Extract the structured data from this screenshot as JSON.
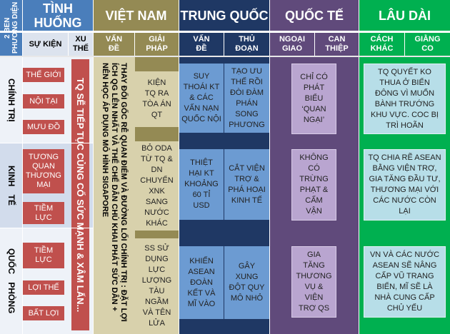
{
  "header": {
    "aspect": "PHƯƠNG DIỆN 2 BÊN",
    "situation": "TÌNH HUỐNG",
    "vietnam": "VIỆT NAM",
    "china": "TRUNG QUỐC",
    "international": "QUỐC TẾ",
    "long_term": "LÂU DÀI"
  },
  "subheader": {
    "event": "SỰ KIỆN",
    "trend": "XU THẾ",
    "vn_issue": "VẤN ĐỀ",
    "vn_solution": "GIẢI PHÁP",
    "cn_issue": "VẤN ĐỀ",
    "cn_tactic": "THỦ ĐOẠN",
    "diplomacy": "NGOẠI GIAO",
    "intervention": "CAN THIỆP",
    "other_way": "CÁCH KHÁC",
    "standoff": "GIẰNG CO"
  },
  "rows": [
    {
      "label": "CHÍNH TRỊ",
      "events": [
        "THẾ GIỚI",
        "NỘI TẠI",
        "MƯU ĐỒ"
      ],
      "vn_solution": "KIỆN TQ RA TÒA ÁN QT",
      "cn_issue": "SUY THOÁI KT & CÁC VẤN NẠN QUỐC NỘI",
      "cn_tactic": "TẠO ƯU THẾ RỒI ĐÒI ĐÀM PHÁN SONG PHƯƠNG",
      "international": "CHỈ CÓ PHÁT BIỂU ‘QUAN NGẠI’",
      "long_term": "TQ QUYẾT KO THUA Ở BIỂN ĐÔNG VÌ MUỐN BÀNH TRƯỚNG KHU VỰC. COC BỊ TRÌ HOÃN"
    },
    {
      "label": "KINH TẾ",
      "events": [
        "TƯƠNG QUAN THƯƠNG MẠI",
        "TIỀM LỰC"
      ],
      "vn_solution": "BỎ ODA TỪ TQ & DN CHUYỂN XNK SANG NƯỚC KHÁC",
      "cn_issue": "THIỆT HẠI KT KHOẢNG 60 TỈ USD",
      "cn_tactic": "CẮT VIỆN TRỢ & PHÁ HOẠI KINH TẾ",
      "international": "KHÔNG CÓ TRỪNG PHẠT & CẤM VẬN",
      "long_term": "TQ CHIA RẼ ASEAN BẰNG VIỆN TRỢ, GIA TĂNG ĐẦU TƯ, THƯƠNG MẠI VỚI CÁC NƯỚC CÒN LẠI"
    },
    {
      "label": "QUỐC PHÒNG",
      "events": [
        "TIỀM LỰC",
        "LỢI THẾ",
        "BẤT LỢI"
      ],
      "vn_solution": "SS SỬ DỤNG LỰC LƯỢNG TÀU NGẦM VÀ TÊN LỬA",
      "cn_issue": "KHIẾN ASEAN ĐOÀN KẾT VÀ MĨ VÀO",
      "cn_tactic": "GÂY XUNG ĐỘT QUY MÔ NHỎ",
      "international": "GIA TĂNG THƯƠNG VỤ & VIỆN TRỢ QS",
      "long_term": "VN VÀ CÁC NƯỚC ASEAN SẼ NÂNG CẤP VŨ TRANG BIỂN, MĨ SẼ LÀ NHÀ CUNG CẤP CHỦ YẾU"
    }
  ],
  "trend": "TQ SẼ TIẾP TỤC CỦNG CỐ SỨC MẠNH & XÂM LẤN...",
  "vn_issue": "THAY ĐỔI GỐC RỄ QUAN ĐIỂM VÀ ĐƯỜNG LỐI CHÍNH TRỊ : ĐẶT LỢI ÍCH QG LÊN NHẤT VÀ THỂ CHẾ DÂN CHỦ KHAI PHÁT SỨC DÂN + NÊN HỌC ÁP DỤNG MÔ HÌNH SIGAPORE"
}
